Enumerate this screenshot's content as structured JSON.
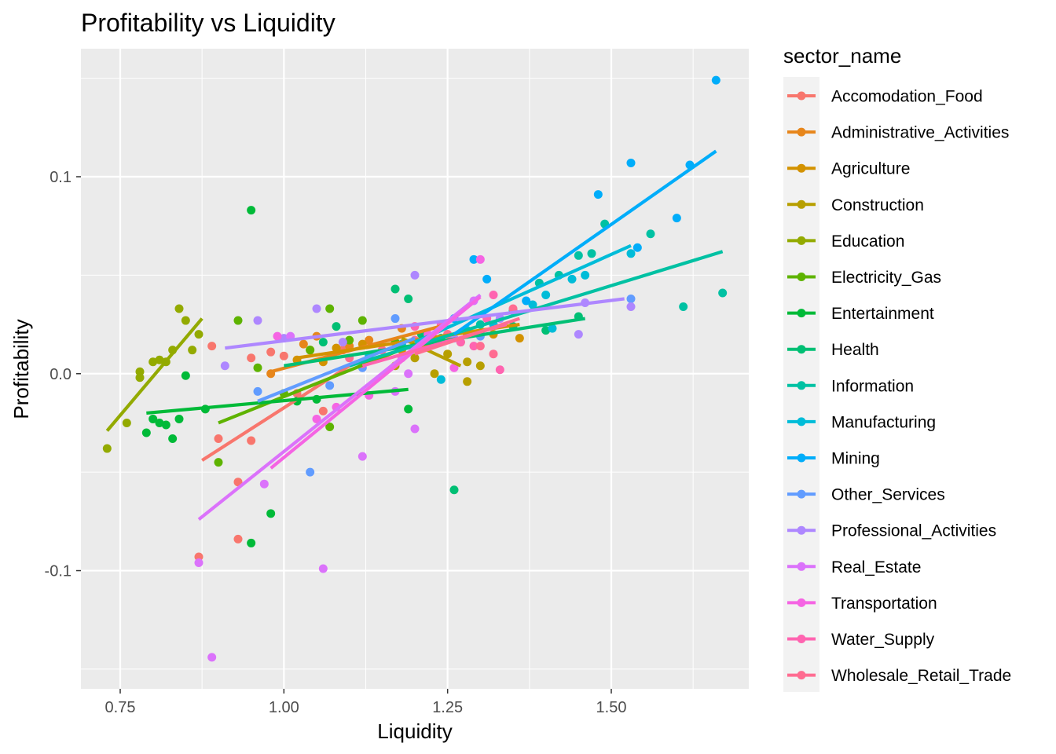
{
  "chart_data": {
    "type": "scatter",
    "title": "Profitability vs Liquidity",
    "xlabel": "Liquidity",
    "ylabel": "Profitability",
    "xlim": [
      0.69,
      1.71
    ],
    "ylim": [
      -0.16,
      0.165
    ],
    "x_ticks": [
      0.75,
      1.0,
      1.25,
      1.5
    ],
    "x_tick_labels": [
      "0.75",
      "1.00",
      "1.25",
      "1.50"
    ],
    "y_ticks": [
      -0.1,
      0.0,
      0.1
    ],
    "y_tick_labels": [
      "-0.1",
      "0.0",
      "0.1"
    ],
    "grid": true,
    "background": "#EBEBEB",
    "legend": {
      "title": "sector_name",
      "position": "right"
    },
    "series": [
      {
        "name": "Accomodation_Food",
        "color": "#F8766D",
        "points": [
          [
            0.87,
            -0.093
          ],
          [
            0.89,
            0.014
          ],
          [
            0.9,
            -0.033
          ],
          [
            0.93,
            -0.084
          ],
          [
            0.95,
            -0.034
          ],
          [
            0.98,
            0.011
          ],
          [
            1.0,
            0.009
          ],
          [
            1.02,
            -0.01
          ],
          [
            1.06,
            -0.019
          ],
          [
            1.09,
            0.012
          ],
          [
            0.93,
            -0.055
          ],
          [
            0.95,
            0.008
          ]
        ],
        "fit": [
          [
            0.875,
            -0.044
          ],
          [
            1.1,
            0.004
          ]
        ]
      },
      {
        "name": "Administrative_Activities",
        "color": "#E7861B",
        "points": [
          [
            0.98,
            0.0
          ],
          [
            1.03,
            0.015
          ],
          [
            1.05,
            0.019
          ],
          [
            1.1,
            0.014
          ],
          [
            1.13,
            0.017
          ],
          [
            1.18,
            0.023
          ],
          [
            1.21,
            0.015
          ],
          [
            1.25,
            0.02
          ]
        ],
        "fit": [
          [
            0.98,
            0.001
          ],
          [
            1.25,
            0.025
          ]
        ]
      },
      {
        "name": "Agriculture",
        "color": "#D39200",
        "points": [
          [
            1.02,
            0.007
          ],
          [
            1.04,
            0.012
          ],
          [
            1.06,
            0.006
          ],
          [
            1.08,
            0.013
          ],
          [
            1.12,
            0.015
          ],
          [
            1.18,
            0.012
          ],
          [
            1.22,
            0.015
          ],
          [
            1.28,
            0.02
          ],
          [
            1.32,
            0.02
          ],
          [
            1.36,
            0.018
          ]
        ],
        "fit": [
          [
            1.02,
            0.008
          ],
          [
            1.36,
            0.025
          ]
        ]
      },
      {
        "name": "Construction",
        "color": "#B79F00",
        "points": [
          [
            1.17,
            0.004
          ],
          [
            1.2,
            0.008
          ],
          [
            1.23,
            0.0
          ],
          [
            1.25,
            0.01
          ],
          [
            1.27,
            0.016
          ],
          [
            1.28,
            0.006
          ],
          [
            1.28,
            -0.004
          ],
          [
            1.3,
            0.004
          ]
        ],
        "fit": [
          [
            1.18,
            0.018
          ],
          [
            1.27,
            0.004
          ]
        ]
      },
      {
        "name": "Education",
        "color": "#93AA00",
        "points": [
          [
            0.73,
            -0.038
          ],
          [
            0.76,
            -0.025
          ],
          [
            0.78,
            0.001
          ],
          [
            0.8,
            0.006
          ],
          [
            0.81,
            0.007
          ],
          [
            0.82,
            0.006
          ],
          [
            0.83,
            0.012
          ],
          [
            0.84,
            0.033
          ],
          [
            0.85,
            0.027
          ],
          [
            0.86,
            0.012
          ],
          [
            0.87,
            0.02
          ],
          [
            0.78,
            -0.002
          ]
        ],
        "fit": [
          [
            0.73,
            -0.029
          ],
          [
            0.875,
            0.028
          ]
        ]
      },
      {
        "name": "Electricity_Gas",
        "color": "#5EB300",
        "points": [
          [
            0.9,
            -0.045
          ],
          [
            0.93,
            0.027
          ],
          [
            0.96,
            0.003
          ],
          [
            1.0,
            -0.01
          ],
          [
            1.04,
            0.012
          ],
          [
            1.07,
            -0.027
          ],
          [
            1.07,
            0.033
          ],
          [
            1.1,
            0.017
          ],
          [
            1.12,
            0.027
          ],
          [
            1.17,
            0.016
          ],
          [
            1.2,
            0.013
          ]
        ],
        "fit": [
          [
            0.9,
            -0.025
          ],
          [
            1.2,
            0.015
          ]
        ]
      },
      {
        "name": "Entertainment",
        "color": "#00BA38",
        "points": [
          [
            0.79,
            -0.03
          ],
          [
            0.8,
            -0.023
          ],
          [
            0.81,
            -0.025
          ],
          [
            0.82,
            -0.026
          ],
          [
            0.83,
            -0.033
          ],
          [
            0.84,
            -0.023
          ],
          [
            0.85,
            -0.001
          ],
          [
            0.88,
            -0.018
          ],
          [
            0.95,
            0.083
          ],
          [
            0.95,
            -0.086
          ],
          [
            0.98,
            -0.071
          ],
          [
            1.02,
            -0.014
          ],
          [
            1.05,
            -0.013
          ],
          [
            1.19,
            -0.018
          ]
        ],
        "fit": [
          [
            0.79,
            -0.02
          ],
          [
            1.19,
            -0.008
          ]
        ]
      },
      {
        "name": "Health",
        "color": "#00BF74",
        "points": [
          [
            1.06,
            0.016
          ],
          [
            1.08,
            0.024
          ],
          [
            1.12,
            0.005
          ],
          [
            1.17,
            0.043
          ],
          [
            1.19,
            0.038
          ],
          [
            1.21,
            0.02
          ],
          [
            1.24,
            0.018
          ],
          [
            1.26,
            -0.059
          ],
          [
            1.3,
            0.02
          ],
          [
            1.35,
            0.024
          ],
          [
            1.4,
            0.022
          ],
          [
            1.45,
            0.029
          ]
        ],
        "fit": [
          [
            1.0,
            0.004
          ],
          [
            1.46,
            0.028
          ]
        ]
      },
      {
        "name": "Information",
        "color": "#00C1A3",
        "points": [
          [
            1.3,
            0.025
          ],
          [
            1.35,
            0.032
          ],
          [
            1.39,
            0.046
          ],
          [
            1.42,
            0.05
          ],
          [
            1.45,
            0.06
          ],
          [
            1.47,
            0.061
          ],
          [
            1.49,
            0.076
          ],
          [
            1.56,
            0.071
          ],
          [
            1.61,
            0.034
          ],
          [
            1.67,
            0.041
          ]
        ],
        "fit": [
          [
            1.1,
            0.004
          ],
          [
            1.67,
            0.062
          ]
        ]
      },
      {
        "name": "Manufacturing",
        "color": "#00BCD8",
        "points": [
          [
            1.13,
            0.009
          ],
          [
            1.18,
            0.015
          ],
          [
            1.24,
            -0.003
          ],
          [
            1.28,
            0.022
          ],
          [
            1.32,
            0.025
          ],
          [
            1.38,
            0.035
          ],
          [
            1.4,
            0.04
          ],
          [
            1.41,
            0.023
          ],
          [
            1.44,
            0.048
          ],
          [
            1.46,
            0.05
          ],
          [
            1.53,
            0.061
          ]
        ],
        "fit": [
          [
            1.2,
            0.016
          ],
          [
            1.53,
            0.065
          ]
        ]
      },
      {
        "name": "Mining",
        "color": "#00ADFA",
        "points": [
          [
            1.26,
            0.028
          ],
          [
            1.29,
            0.058
          ],
          [
            1.31,
            0.048
          ],
          [
            1.48,
            0.091
          ],
          [
            1.53,
            0.107
          ],
          [
            1.54,
            0.064
          ],
          [
            1.6,
            0.079
          ],
          [
            1.62,
            0.106
          ],
          [
            1.66,
            0.149
          ],
          [
            1.37,
            0.037
          ]
        ],
        "fit": [
          [
            1.26,
            0.02
          ],
          [
            1.66,
            0.113
          ]
        ]
      },
      {
        "name": "Other_Services",
        "color": "#619CFF",
        "points": [
          [
            0.96,
            -0.009
          ],
          [
            1.04,
            -0.05
          ],
          [
            1.07,
            -0.006
          ],
          [
            1.12,
            0.003
          ],
          [
            1.17,
            0.028
          ],
          [
            1.2,
            0.017
          ],
          [
            1.3,
            0.019
          ],
          [
            1.53,
            0.038
          ]
        ],
        "fit": [
          [
            0.96,
            -0.014
          ],
          [
            1.2,
            0.018
          ]
        ]
      },
      {
        "name": "Professional_Activities",
        "color": "#AE87FF",
        "points": [
          [
            0.91,
            0.004
          ],
          [
            0.96,
            0.027
          ],
          [
            1.0,
            0.018
          ],
          [
            1.05,
            0.033
          ],
          [
            1.09,
            0.016
          ],
          [
            1.2,
            0.05
          ],
          [
            1.26,
            0.018
          ],
          [
            1.33,
            0.028
          ],
          [
            1.46,
            0.036
          ],
          [
            1.53,
            0.034
          ],
          [
            1.45,
            0.02
          ]
        ],
        "fit": [
          [
            0.91,
            0.013
          ],
          [
            1.52,
            0.038
          ]
        ]
      },
      {
        "name": "Real_Estate",
        "color": "#DB72FB",
        "points": [
          [
            0.87,
            -0.096
          ],
          [
            0.89,
            -0.144
          ],
          [
            0.97,
            -0.056
          ],
          [
            1.01,
            0.019
          ],
          [
            1.06,
            -0.099
          ],
          [
            1.12,
            -0.042
          ],
          [
            1.17,
            -0.009
          ],
          [
            1.19,
            0.0
          ],
          [
            1.2,
            -0.028
          ],
          [
            1.29,
            0.037
          ]
        ],
        "fit": [
          [
            0.87,
            -0.074
          ],
          [
            1.3,
            0.04
          ]
        ]
      },
      {
        "name": "Transportation",
        "color": "#F564E3",
        "points": [
          [
            0.99,
            0.019
          ],
          [
            1.05,
            -0.023
          ],
          [
            1.08,
            -0.017
          ],
          [
            1.13,
            -0.011
          ],
          [
            1.18,
            0.008
          ],
          [
            1.22,
            0.02
          ],
          [
            1.26,
            0.003
          ],
          [
            1.3,
            0.058
          ]
        ],
        "fit": [
          [
            0.98,
            -0.048
          ],
          [
            1.3,
            0.039
          ]
        ]
      },
      {
        "name": "Water_Supply",
        "color": "#FF64B0",
        "points": [
          [
            1.12,
            0.005
          ],
          [
            1.2,
            0.024
          ],
          [
            1.24,
            0.025
          ],
          [
            1.27,
            0.016
          ],
          [
            1.29,
            0.014
          ],
          [
            1.31,
            0.028
          ],
          [
            1.32,
            0.04
          ],
          [
            1.33,
            0.002
          ]
        ],
        "fit": [
          [
            1.12,
            0.004
          ],
          [
            1.34,
            0.025
          ]
        ]
      },
      {
        "name": "Wholesale_Retail_Trade",
        "color": "#FF6C91",
        "points": [
          [
            1.1,
            0.008
          ],
          [
            1.15,
            0.012
          ],
          [
            1.2,
            0.017
          ],
          [
            1.25,
            0.02
          ],
          [
            1.3,
            0.014
          ],
          [
            1.32,
            0.01
          ],
          [
            1.35,
            0.033
          ]
        ],
        "fit": [
          [
            1.2,
            0.01
          ],
          [
            1.36,
            0.028
          ]
        ]
      }
    ]
  }
}
